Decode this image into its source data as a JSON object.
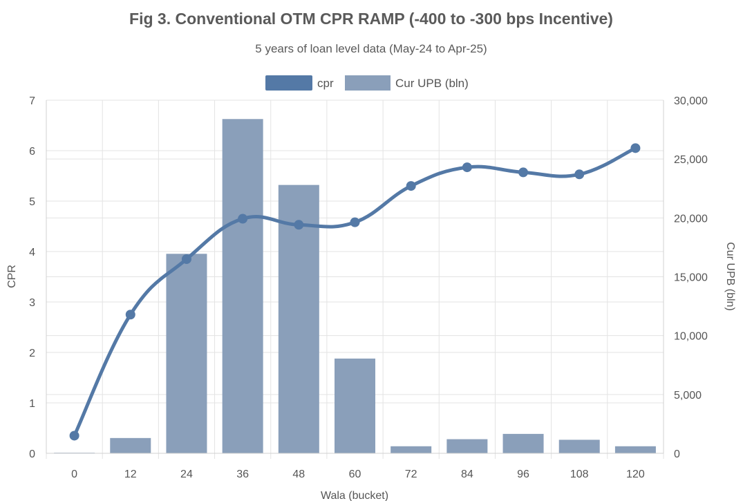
{
  "chart_data": {
    "type": "bar",
    "title": "Fig 3. Conventional OTM CPR RAMP (-400 to -300 bps Incentive)",
    "subtitle": "5 years of loan level data (May-24 to Apr-25)",
    "xlabel": "Wala (bucket)",
    "ylabel": "CPR",
    "y2label": "Cur UPB (bln)",
    "categories": [
      "0",
      "12",
      "24",
      "36",
      "48",
      "60",
      "72",
      "84",
      "96",
      "108",
      "120"
    ],
    "series": [
      {
        "name": "cpr",
        "kind": "line",
        "axis": "left",
        "color": "#5479a6",
        "values": [
          0.35,
          2.75,
          3.85,
          4.65,
          4.53,
          4.58,
          5.3,
          5.67,
          5.57,
          5.53,
          6.05
        ]
      },
      {
        "name": "Cur UPB (bln)",
        "kind": "bar",
        "axis": "right",
        "color": "#8a9fba",
        "values": [
          50,
          1300,
          16950,
          28400,
          22800,
          8050,
          600,
          1200,
          1650,
          1150,
          600
        ]
      }
    ],
    "ylim": [
      0,
      7
    ],
    "y2lim": [
      0,
      30000
    ],
    "yticks": [
      "0",
      "1",
      "2",
      "3",
      "4",
      "5",
      "6",
      "7"
    ],
    "y2ticks": [
      "0",
      "5,000",
      "10,000",
      "15,000",
      "20,000",
      "25,000",
      "30,000"
    ],
    "grid": true,
    "legend_position": "top"
  }
}
